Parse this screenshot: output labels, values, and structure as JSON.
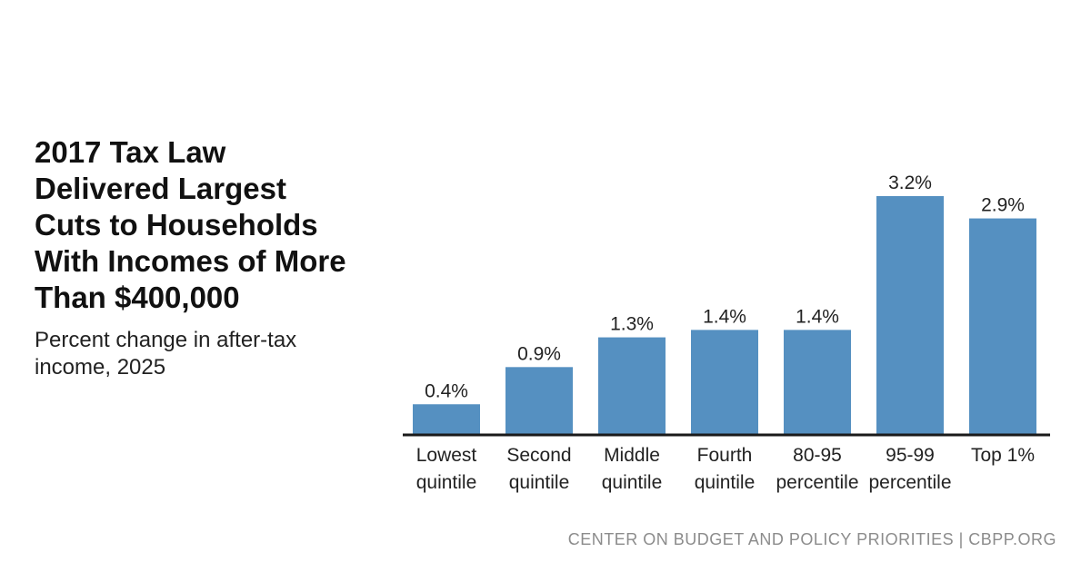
{
  "header": {
    "title": "2017 Tax Law\nDelivered Largest\nCuts to Households\nWith Incomes of More\nThan $400,000",
    "subtitle": "Percent change in after-tax income, 2025"
  },
  "footer": {
    "source": "CENTER ON BUDGET AND POLICY PRIORITIES | CBPP.ORG"
  },
  "colors": {
    "bar": "#5590c1",
    "axis": "#1a1a1a",
    "text": "#222222"
  },
  "chart_data": {
    "type": "bar",
    "categories": [
      [
        "Lowest",
        "quintile"
      ],
      [
        "Second",
        "quintile"
      ],
      [
        "Middle",
        "quintile"
      ],
      [
        "Fourth",
        "quintile"
      ],
      [
        "80-95",
        "percentile"
      ],
      [
        "95-99",
        "percentile"
      ],
      [
        "Top 1%"
      ]
    ],
    "values": [
      0.4,
      0.9,
      1.3,
      1.4,
      1.4,
      3.2,
      2.9
    ],
    "labels": [
      "0.4%",
      "0.9%",
      "1.3%",
      "1.4%",
      "1.4%",
      "3.2%",
      "2.9%"
    ],
    "ylim": [
      0,
      3.2
    ],
    "grid": false,
    "legend": "none"
  }
}
